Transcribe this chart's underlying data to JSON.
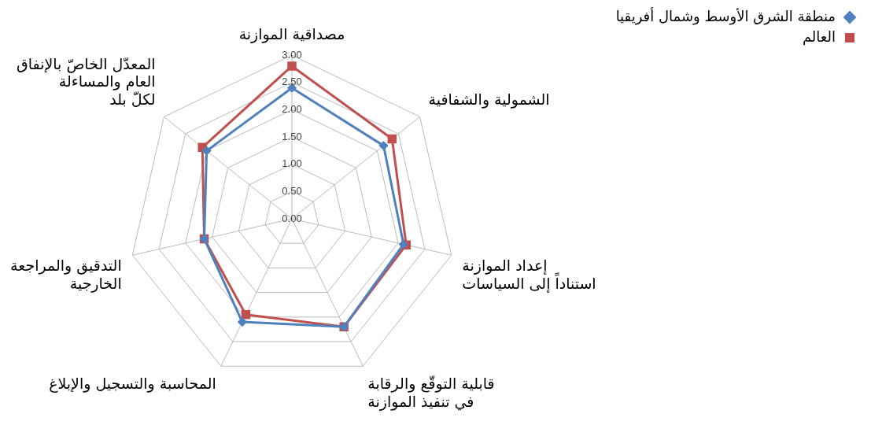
{
  "chart_data": {
    "type": "radar",
    "categories": [
      "مصداقية الموازنة",
      "الشمولية والشفافية",
      "إعداد الموازنة\nاستناداً إلى السياسات",
      "قابلية التوقّع والرقابة\nفي تنفيذ الموازنة",
      "المحاسبة والتسجيل والإبلاغ",
      "التدقيق والمراجعة\nالخارجية",
      "المعدّل الخاصّ بالإنفاق\nالعام والمساءلة\nلكلّ بلد"
    ],
    "series": [
      {
        "name": "منطقة الشرق الأوسط وشمال أفريقيا",
        "color": "#4f81bd",
        "marker": "diamond",
        "values": [
          2.4,
          2.15,
          2.1,
          2.2,
          2.1,
          1.65,
          2.0
        ]
      },
      {
        "name": "العالم",
        "color": "#c0504d",
        "marker": "square",
        "values": [
          2.8,
          2.35,
          2.15,
          2.2,
          1.95,
          1.65,
          2.1
        ]
      }
    ],
    "ylim": [
      0,
      3
    ],
    "yticks": [
      {
        "value": 0,
        "label": "0.00"
      },
      {
        "value": 0.5,
        "label": "0.50"
      },
      {
        "value": 1,
        "label": "1.00"
      },
      {
        "value": 1.5,
        "label": "1.50"
      },
      {
        "value": 2,
        "label": "2.00"
      },
      {
        "value": 2.5,
        "label": "2.50"
      },
      {
        "value": 3,
        "label": "3.00"
      }
    ],
    "grid": true,
    "legend": "top right",
    "line_style": "solid"
  }
}
